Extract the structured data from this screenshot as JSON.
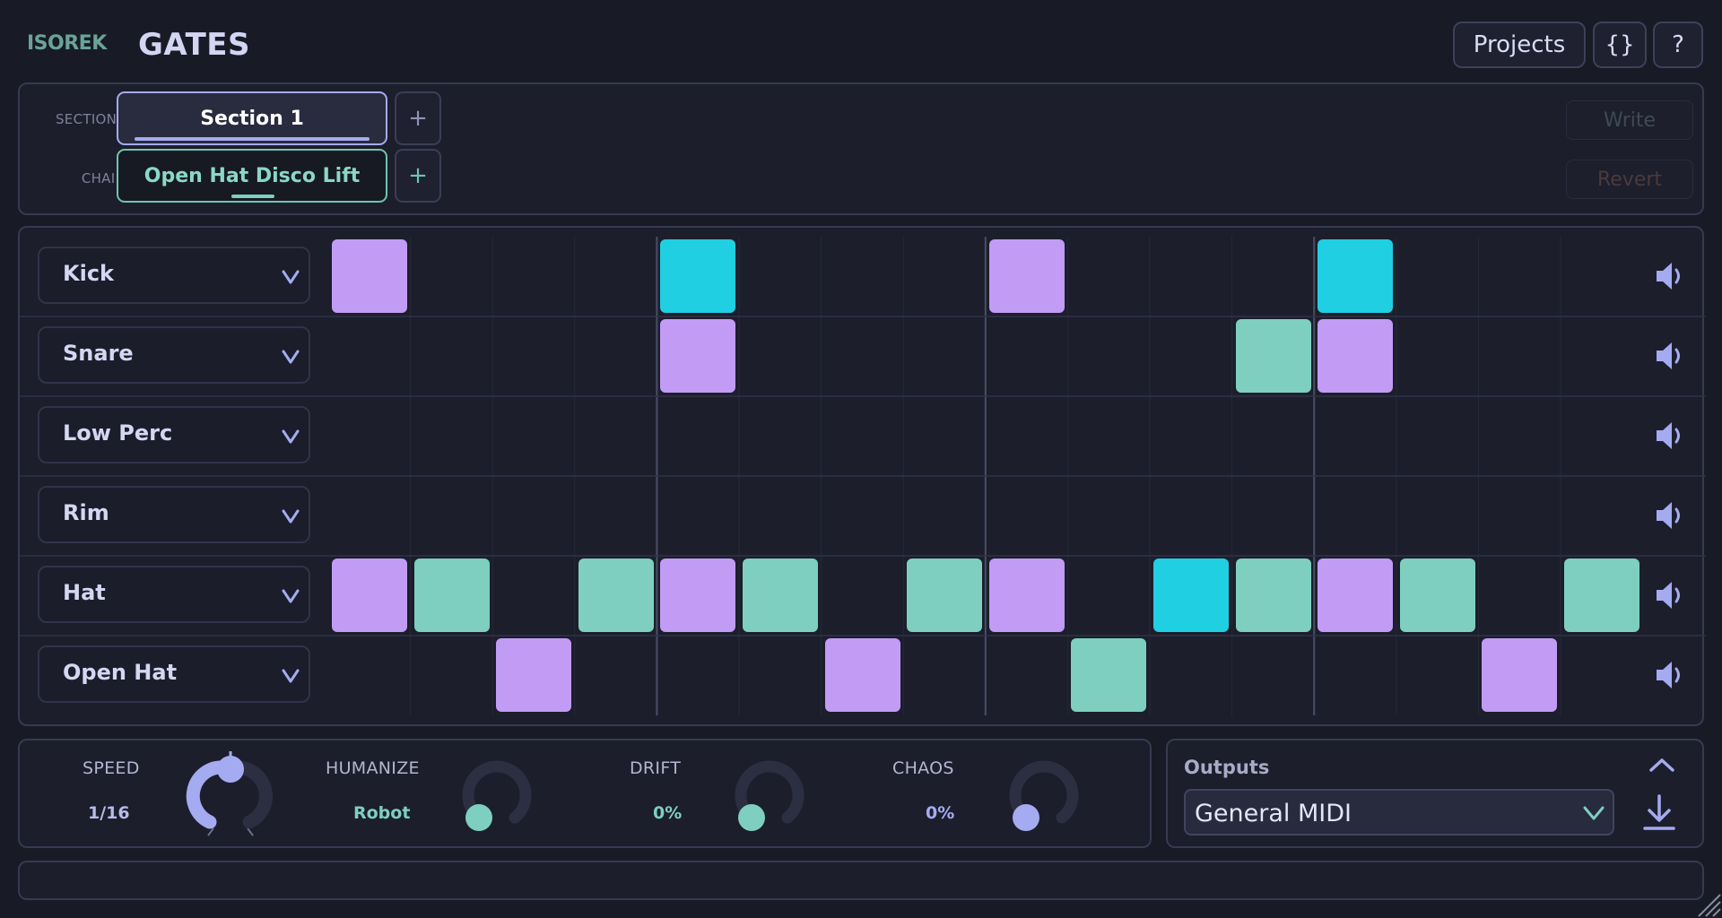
{
  "header": {
    "brand": "ISOREK",
    "title": "GATES",
    "projects_label": "Projects",
    "code_label": "{}",
    "help_label": "?"
  },
  "sections_bar": {
    "sections_label": "SECTIONS",
    "chain_label": "CHAIN",
    "section_name": "Section 1",
    "chain_name": "Open Hat Disco Lift",
    "add_label": "+",
    "write_label": "Write",
    "revert_label": "Revert"
  },
  "sequencer": {
    "steps": 16,
    "tracks": [
      {
        "name": "Kick",
        "steps": [
          [
            "p",
            0
          ],
          [
            "c",
            4
          ],
          [
            "p",
            8
          ],
          [
            "c",
            12
          ]
        ]
      },
      {
        "name": "Snare",
        "steps": [
          [
            "p",
            4
          ],
          [
            "t",
            11
          ],
          [
            "p",
            12
          ]
        ]
      },
      {
        "name": "Low Perc",
        "steps": []
      },
      {
        "name": "Rim",
        "steps": []
      },
      {
        "name": "Hat",
        "steps": [
          [
            "p",
            0
          ],
          [
            "t",
            1
          ],
          [
            "t",
            3
          ],
          [
            "p",
            4
          ],
          [
            "t",
            5
          ],
          [
            "t",
            7
          ],
          [
            "p",
            8
          ],
          [
            "c",
            10
          ],
          [
            "t",
            11
          ],
          [
            "p",
            12
          ],
          [
            "t",
            13
          ],
          [
            "t",
            15
          ]
        ]
      },
      {
        "name": "Open Hat",
        "steps": [
          [
            "p",
            2
          ],
          [
            "p",
            6
          ],
          [
            "t",
            9
          ],
          [
            "p",
            14
          ]
        ]
      }
    ],
    "step_colors": {
      "p": "#c29bf5",
      "c": "#20cfe2",
      "t": "#7ecfc0"
    }
  },
  "controls": {
    "speed": {
      "label": "SPEED",
      "value": "1/16",
      "level": 0.5
    },
    "humanize": {
      "label": "HUMANIZE",
      "value": "Robot",
      "level": 0
    },
    "drift": {
      "label": "DRIFT",
      "value": "0%",
      "level": 0
    },
    "chaos": {
      "label": "CHAOS",
      "value": "0%",
      "level": 0
    }
  },
  "outputs": {
    "title": "Outputs",
    "selected": "General MIDI"
  },
  "colors": {
    "accent": "#a5abf0",
    "teal": "#7ecfc0",
    "purple": "#c29bf5",
    "cyan": "#20cfe2"
  },
  "icons": [
    "chevron-down-icon",
    "speaker-icon",
    "chevron-up-icon",
    "download-icon",
    "resize-grip-icon"
  ]
}
